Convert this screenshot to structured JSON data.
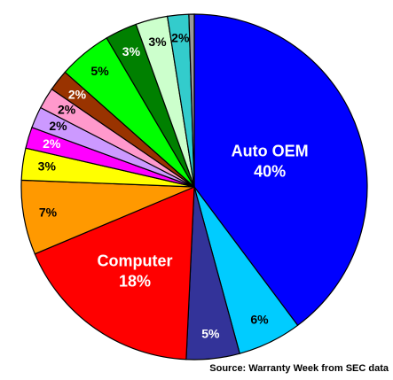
{
  "chart_data": {
    "type": "pie",
    "categories": [
      "Auto OEM",
      null,
      null,
      "Computer",
      null,
      null,
      null,
      null,
      null,
      null,
      null,
      null,
      null,
      null,
      null
    ],
    "values": [
      40,
      6,
      5,
      18,
      7,
      3,
      2,
      2,
      2,
      2,
      5,
      3,
      3,
      2,
      0.5
    ],
    "value_labels": [
      "40%",
      "6%",
      "5%",
      "18%",
      "7%",
      "3%",
      "2%",
      "2%",
      "2%",
      "2%",
      "5%",
      "3%",
      "3%",
      "2%",
      null
    ],
    "colors": [
      "#0000ff",
      "#00ccff",
      "#333399",
      "#ff0000",
      "#ff9900",
      "#ffff00",
      "#ff00ff",
      "#cc99ff",
      "#ff99cc",
      "#993300",
      "#00ff00",
      "#008000",
      "#ccffcc",
      "#33cccc",
      "#999999"
    ],
    "start_angle": 0,
    "direction": "clockwise",
    "source": "Source: Warranty Week from SEC data"
  }
}
